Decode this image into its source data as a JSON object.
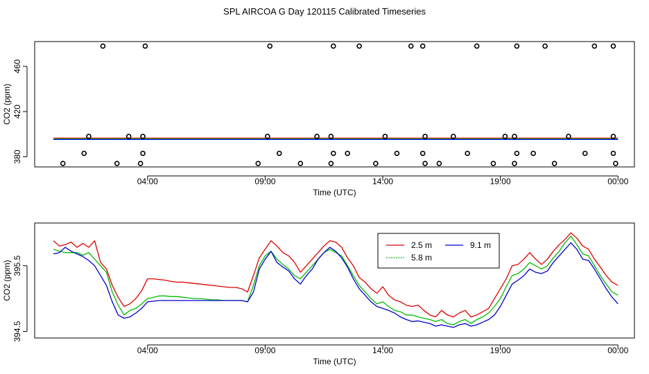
{
  "title": "SPL AIRCOA G  Day 120115  Calibrated Timeseries",
  "chart_data": [
    {
      "type": "scatter",
      "xlabel": "Time (UTC)",
      "ylabel": "CO2 (ppm)",
      "xlim": [
        -0.8,
        24.7
      ],
      "ylim": [
        371,
        482
      ],
      "x_ticks": [
        {
          "value": 4,
          "label": "04:00"
        },
        {
          "value": 9,
          "label": "09:00"
        },
        {
          "value": 14,
          "label": "14:00"
        },
        {
          "value": 19,
          "label": "19:00"
        },
        {
          "value": 24,
          "label": "00:00"
        }
      ],
      "y_ticks": [
        {
          "value": 380,
          "label": "380"
        },
        {
          "value": 420,
          "label": "420"
        },
        {
          "value": 460,
          "label": "460"
        }
      ],
      "points": [
        [
          2.1,
          478
        ],
        [
          3.9,
          478
        ],
        [
          9.2,
          478
        ],
        [
          11.9,
          478
        ],
        [
          13.0,
          478
        ],
        [
          15.2,
          478
        ],
        [
          15.7,
          478
        ],
        [
          18.0,
          478
        ],
        [
          19.7,
          478
        ],
        [
          20.9,
          478
        ],
        [
          23.0,
          478
        ],
        [
          23.8,
          478
        ],
        [
          1.5,
          398
        ],
        [
          3.2,
          398
        ],
        [
          3.8,
          398
        ],
        [
          9.1,
          398
        ],
        [
          11.2,
          398
        ],
        [
          11.8,
          398
        ],
        [
          14.1,
          398
        ],
        [
          15.8,
          398
        ],
        [
          17.0,
          398
        ],
        [
          19.2,
          398
        ],
        [
          19.6,
          398
        ],
        [
          21.9,
          398
        ],
        [
          23.8,
          398
        ],
        [
          1.3,
          383
        ],
        [
          3.8,
          383
        ],
        [
          9.6,
          383
        ],
        [
          11.9,
          383
        ],
        [
          12.5,
          383
        ],
        [
          14.6,
          383
        ],
        [
          15.7,
          383
        ],
        [
          17.6,
          383
        ],
        [
          19.7,
          383
        ],
        [
          20.4,
          383
        ],
        [
          22.6,
          383
        ],
        [
          23.8,
          383
        ],
        [
          0.4,
          374
        ],
        [
          2.7,
          374
        ],
        [
          3.7,
          374
        ],
        [
          8.7,
          374
        ],
        [
          10.5,
          374
        ],
        [
          11.8,
          374
        ],
        [
          13.7,
          374
        ],
        [
          15.8,
          374
        ],
        [
          16.4,
          374
        ],
        [
          18.7,
          374
        ],
        [
          19.6,
          374
        ],
        [
          21.3,
          374
        ],
        [
          23.9,
          374
        ]
      ],
      "series": [
        {
          "name": "2.5 m",
          "color": "#ff0000",
          "x": [
            0,
            24
          ],
          "values": [
            396.5,
            396.5
          ]
        },
        {
          "name": "5.8 m",
          "color": "#00cc00",
          "x": [
            0,
            24
          ],
          "values": [
            395.9,
            395.9
          ]
        },
        {
          "name": "9.1 m",
          "color": "#0000ff",
          "x": [
            0,
            24
          ],
          "values": [
            395.3,
            395.3
          ]
        }
      ]
    },
    {
      "type": "line",
      "xlabel": "Time (UTC)",
      "ylabel": "CO2 (ppm)",
      "xlim": [
        -0.8,
        24.7
      ],
      "ylim": [
        394.4,
        396.15
      ],
      "x_ticks": [
        {
          "value": 4,
          "label": "04:00"
        },
        {
          "value": 9,
          "label": "09:00"
        },
        {
          "value": 14,
          "label": "14:00"
        },
        {
          "value": 19,
          "label": "19:00"
        },
        {
          "value": 24,
          "label": "00:00"
        }
      ],
      "y_ticks": [
        {
          "value": 394.5,
          "label": "394.5"
        },
        {
          "value": 395.5,
          "label": "395.5"
        }
      ],
      "legend_position": "top-right",
      "x": [
        0.0,
        0.25,
        0.5,
        0.75,
        1.0,
        1.25,
        1.5,
        1.75,
        2.0,
        2.25,
        2.5,
        2.75,
        3.0,
        3.25,
        3.5,
        3.75,
        4.0,
        4.25,
        4.5,
        4.75,
        5.0,
        5.25,
        5.5,
        5.75,
        6.0,
        6.25,
        6.5,
        6.75,
        7.0,
        7.25,
        7.5,
        7.75,
        8.0,
        8.25,
        8.5,
        8.75,
        9.0,
        9.25,
        9.5,
        9.75,
        10.0,
        10.25,
        10.5,
        10.75,
        11.0,
        11.25,
        11.5,
        11.75,
        12.0,
        12.25,
        12.5,
        12.75,
        13.0,
        13.25,
        13.5,
        13.75,
        14.0,
        14.25,
        14.5,
        14.75,
        15.0,
        15.25,
        15.5,
        15.75,
        16.0,
        16.25,
        16.5,
        16.75,
        17.0,
        17.25,
        17.5,
        17.75,
        18.0,
        18.25,
        18.5,
        18.75,
        19.0,
        19.25,
        19.5,
        19.75,
        20.0,
        20.25,
        20.5,
        20.75,
        21.0,
        21.25,
        21.5,
        21.75,
        22.0,
        22.25,
        22.5,
        22.75,
        23.0,
        23.25,
        23.5,
        23.75,
        24.0
      ],
      "series": [
        {
          "name": "2.5 m",
          "color": "#dd0000",
          "values": [
            395.88,
            395.8,
            395.82,
            395.86,
            395.78,
            395.84,
            395.78,
            395.88,
            395.55,
            395.45,
            395.2,
            395.02,
            394.88,
            394.92,
            395.0,
            395.12,
            395.3,
            395.3,
            395.29,
            395.28,
            395.26,
            395.25,
            395.25,
            395.24,
            395.23,
            395.22,
            395.21,
            395.2,
            395.19,
            395.18,
            395.17,
            395.17,
            395.15,
            395.1,
            395.35,
            395.62,
            395.75,
            395.88,
            395.8,
            395.7,
            395.65,
            395.55,
            395.4,
            395.5,
            395.6,
            395.7,
            395.8,
            395.88,
            395.86,
            395.78,
            395.62,
            395.5,
            395.32,
            395.25,
            395.15,
            395.08,
            395.18,
            395.05,
            394.98,
            394.95,
            394.9,
            394.88,
            394.9,
            394.82,
            394.75,
            394.72,
            394.82,
            394.75,
            394.72,
            394.78,
            394.82,
            394.72,
            394.75,
            394.8,
            394.85,
            395.0,
            395.15,
            395.3,
            395.5,
            395.52,
            395.6,
            395.7,
            395.6,
            395.52,
            395.6,
            395.72,
            395.82,
            395.9,
            396.0,
            395.92,
            395.8,
            395.75,
            395.6,
            395.48,
            395.35,
            395.25,
            395.2
          ]
        },
        {
          "name": "5.8 m",
          "color": "#00bb00",
          "values": [
            395.75,
            395.72,
            395.7,
            395.7,
            395.7,
            395.66,
            395.7,
            395.6,
            395.5,
            395.4,
            395.1,
            394.9,
            394.75,
            394.82,
            394.85,
            394.92,
            395.0,
            395.02,
            395.04,
            395.04,
            395.03,
            395.03,
            395.02,
            395.01,
            395.0,
            395.0,
            394.99,
            394.98,
            394.98,
            394.97,
            394.97,
            394.97,
            394.97,
            394.95,
            395.2,
            395.5,
            395.65,
            395.72,
            395.6,
            395.52,
            395.45,
            395.35,
            395.3,
            395.4,
            395.5,
            395.6,
            395.7,
            395.75,
            395.7,
            395.65,
            395.5,
            395.35,
            395.2,
            395.1,
            395.0,
            394.92,
            394.95,
            394.88,
            394.82,
            394.8,
            394.75,
            394.75,
            394.72,
            394.7,
            394.68,
            394.65,
            394.68,
            394.62,
            394.6,
            394.65,
            394.68,
            394.62,
            394.68,
            394.72,
            394.78,
            394.88,
            395.0,
            395.18,
            395.35,
            395.38,
            395.45,
            395.55,
            395.5,
            395.45,
            395.5,
            395.62,
            395.72,
            395.85,
            395.95,
            395.82,
            395.68,
            395.65,
            395.5,
            395.35,
            395.22,
            395.1,
            395.05
          ]
        },
        {
          "name": "9.1 m",
          "color": "#0000cc",
          "values": [
            395.68,
            395.7,
            395.78,
            395.72,
            395.68,
            395.64,
            395.58,
            395.5,
            395.35,
            395.2,
            394.95,
            394.75,
            394.7,
            394.72,
            394.78,
            394.85,
            394.95,
            394.96,
            394.97,
            394.97,
            394.97,
            394.97,
            394.97,
            394.97,
            394.97,
            394.97,
            394.97,
            394.97,
            394.97,
            394.97,
            394.97,
            394.97,
            394.97,
            394.95,
            395.1,
            395.45,
            395.6,
            395.72,
            395.55,
            395.48,
            395.42,
            395.3,
            395.22,
            395.35,
            395.45,
            395.6,
            395.7,
            395.78,
            395.72,
            395.62,
            395.48,
            395.3,
            395.15,
            395.05,
            394.95,
            394.88,
            394.85,
            394.82,
            394.78,
            394.72,
            394.68,
            394.65,
            394.66,
            394.64,
            394.62,
            394.58,
            394.6,
            394.58,
            394.56,
            394.6,
            394.62,
            394.58,
            394.6,
            394.64,
            394.68,
            394.75,
            394.88,
            395.05,
            395.22,
            395.28,
            395.35,
            395.45,
            395.4,
            395.38,
            395.42,
            395.55,
            395.65,
            395.75,
            395.85,
            395.75,
            395.6,
            395.58,
            395.45,
            395.3,
            395.15,
            395.02,
            394.92
          ]
        }
      ]
    }
  ]
}
